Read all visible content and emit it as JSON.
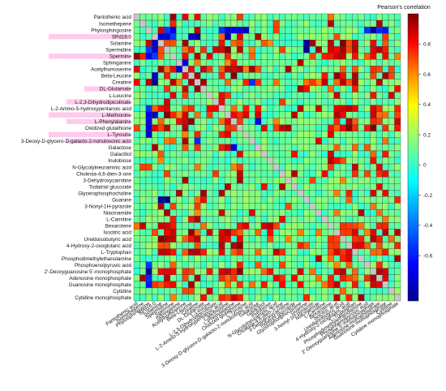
{
  "chart_data": {
    "type": "heatmap",
    "title": "",
    "colorbar": {
      "title": "Pearson's correlation",
      "ticks": [
        0.8,
        0.6,
        0.4,
        0.2,
        0,
        -0.2,
        -0.4,
        -0.6
      ],
      "range": [
        -0.9,
        1.0
      ]
    },
    "labels": [
      "Pantothenic acid",
      "Isomethepene",
      "Phytosphingosine",
      "SPd16:0",
      "Solamine",
      "Spermidine",
      "Spermine",
      "Sphinganine",
      "Acetylhomoserine",
      "Beta-Leucine",
      "Creatine",
      "DL-Glutamate",
      "L-Leucine",
      "L-2,3-Dihydrodipicolinate",
      "L-2-Amino-5-hydroxypentanoic acid",
      "L-Methionine",
      "L-Phenylalanine",
      "Oxidized glutathione",
      "L-Tyrosine",
      "3-Deoxy-D-glycero-D-galacto-2-nonulosonic acid",
      "Galactose",
      "Galactitol",
      "Inulobiose",
      "N-Glycolylneuraminic acid",
      "Cholesta-4,6-dien-3-one",
      "3-Dehydroxycarnitine",
      "Todatriol glucoside",
      "Glycerophosphocholine",
      "Guanine",
      "3-Nonyl-1H-pyrazole",
      "Niacinamide",
      "L-Carnitine",
      "Bexarotene",
      "Isocitric acid",
      "Ureidoisobutyric acid",
      "4-Hydroxy-2-oxoglutaric acid",
      "L-Tryptophan",
      "Phosphodimethylethanolamine",
      "Phosphoenolpyruvic acid",
      "2'-Deoxyguanosine 5'-monophosphate",
      "Adenosine monophosphate",
      "Guanosine monophosphate",
      "Cytidine",
      "Cytidine monophosphate"
    ],
    "highlighted_labels": [
      3,
      6,
      11,
      13,
      15,
      16,
      18,
      19
    ],
    "strong_rows": [
      4,
      5,
      6,
      8,
      9,
      10,
      14,
      15,
      16,
      17,
      32,
      33,
      34,
      35,
      36,
      39,
      40,
      41
    ],
    "negative_cells": [
      [
        3,
        4
      ],
      [
        3,
        5
      ],
      [
        3,
        9
      ],
      [
        3,
        10
      ],
      [
        2,
        6
      ],
      [
        5,
        2
      ],
      [
        6,
        2
      ],
      [
        6,
        3
      ],
      [
        7,
        8
      ],
      [
        14,
        2
      ],
      [
        15,
        2
      ],
      [
        16,
        2
      ],
      [
        17,
        2
      ],
      [
        18,
        2
      ],
      [
        28,
        4
      ],
      [
        28,
        5
      ],
      [
        38,
        2
      ],
      [
        39,
        2
      ],
      [
        40,
        2
      ],
      [
        41,
        2
      ],
      [
        20,
        16
      ],
      [
        3,
        15
      ],
      [
        10,
        19
      ]
    ],
    "colormap": [
      "#00008f",
      "#0000ff",
      "#0080ff",
      "#00ffff",
      "#80ff80",
      "#ffff00",
      "#ff8000",
      "#ff0000",
      "#800000"
    ]
  }
}
